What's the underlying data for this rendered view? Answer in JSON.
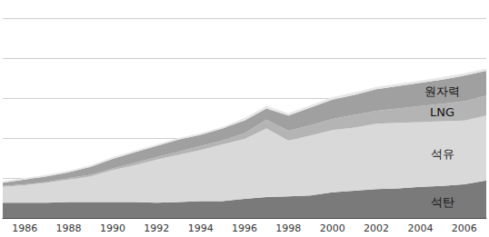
{
  "chart_data": {
    "type": "area",
    "stacked": true,
    "grid": true,
    "tick_labels": "x",
    "categories": [
      null,
      "1986",
      null,
      "1988",
      null,
      "1990",
      null,
      "1992",
      null,
      "1994",
      null,
      "1996",
      null,
      "1998",
      null,
      "2000",
      null,
      "2002",
      null,
      "2004",
      null,
      "2006",
      null
    ],
    "ylim": [
      0,
      250
    ],
    "yticks": [
      50,
      100,
      150,
      200,
      250
    ],
    "series": [
      {
        "name": "석탄",
        "color": "#7a7a7a",
        "values": [
          19,
          19,
          19,
          20,
          20,
          20,
          20,
          19,
          20,
          21,
          21,
          24,
          26,
          27,
          28,
          32,
          34,
          36,
          37,
          39,
          40,
          42,
          47
        ]
      },
      {
        "name": "석유",
        "color": "#d9d9d9",
        "values": [
          20,
          22,
          25,
          28,
          32,
          40,
          46,
          54,
          59,
          64,
          71,
          75,
          86,
          70,
          75,
          78,
          79,
          82,
          82,
          81,
          81,
          80,
          81
        ]
      },
      {
        "name": "LNG",
        "color": "#b4b4b4",
        "values": [
          1,
          1,
          1,
          2,
          2,
          2,
          3,
          3,
          4,
          5,
          5,
          7,
          11,
          12,
          13,
          14,
          16,
          16,
          18,
          20,
          22,
          24,
          25
        ]
      },
      {
        "name": "원자력",
        "color": "#a0a0a0",
        "values": [
          4,
          6,
          7,
          7,
          10,
          12,
          13,
          14,
          15,
          14,
          15,
          16,
          14,
          19,
          22,
          24,
          25,
          27,
          28,
          29,
          30,
          32,
          31
        ]
      },
      {
        "color": "#e6e6e6",
        "values": [
          2,
          2,
          2,
          2,
          2,
          2,
          2,
          2,
          2,
          2,
          2,
          3,
          3,
          3,
          3,
          3,
          3,
          3,
          3,
          3,
          3,
          3,
          3
        ]
      }
    ]
  }
}
